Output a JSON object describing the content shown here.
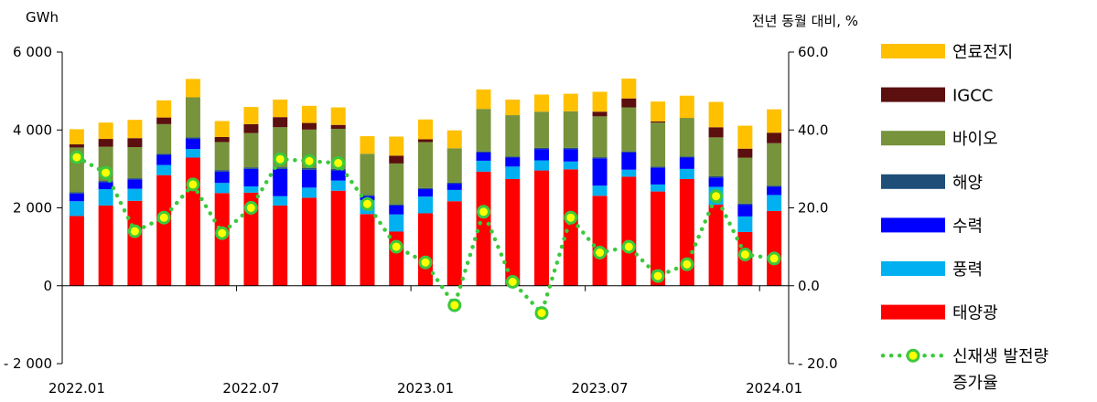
{
  "chart_data": {
    "type": "bar",
    "stacked": true,
    "left_axis": {
      "unit": "GWh",
      "ylim": [
        -2000,
        6000
      ],
      "ticks": [
        -2000,
        0,
        2000,
        4000,
        6000
      ],
      "tick_labels": [
        "- 2 000",
        "0",
        "2 000",
        "4 000",
        "6 000"
      ]
    },
    "right_axis": {
      "unit": "전년 동월 대비, %",
      "ylim": [
        -20,
        60
      ],
      "ticks": [
        -20,
        0,
        20,
        40,
        60
      ],
      "tick_labels": [
        "- 20.0",
        "0.0",
        "20.0",
        "40.0",
        "60.0"
      ]
    },
    "x_tick_labels": [
      {
        "index": 0,
        "label": "2022.01"
      },
      {
        "index": 6,
        "label": "2022.07"
      },
      {
        "index": 12,
        "label": "2023.01"
      },
      {
        "index": 18,
        "label": "2023.07"
      },
      {
        "index": 24,
        "label": "2024.01"
      }
    ],
    "categories": [
      "2022.01",
      "2022.02",
      "2022.03",
      "2022.04",
      "2022.05",
      "2022.06",
      "2022.07",
      "2022.08",
      "2022.09",
      "2022.10",
      "2022.11",
      "2022.12",
      "2023.01",
      "2023.02",
      "2023.03",
      "2023.04",
      "2023.05",
      "2023.06",
      "2023.07",
      "2023.08",
      "2023.09",
      "2023.10",
      "2023.11",
      "2023.12",
      "2024.01"
    ],
    "series": [
      {
        "name": "태양광",
        "color": "#ff0000",
        "values": [
          1790,
          2060,
          2180,
          2840,
          3290,
          2380,
          2390,
          2060,
          2260,
          2440,
          1840,
          1390,
          1860,
          2170,
          2930,
          2740,
          2960,
          2990,
          2310,
          2800,
          2420,
          2740,
          2080,
          1380,
          1920
        ]
      },
      {
        "name": "풍력",
        "color": "#00b0f0",
        "values": [
          380,
          420,
          310,
          260,
          220,
          260,
          160,
          240,
          260,
          260,
          360,
          440,
          430,
          290,
          280,
          320,
          260,
          200,
          260,
          180,
          180,
          260,
          460,
          400,
          410
        ]
      },
      {
        "name": "수력",
        "color": "#0000ff",
        "values": [
          200,
          180,
          240,
          260,
          260,
          290,
          450,
          700,
          460,
          260,
          100,
          230,
          190,
          160,
          210,
          230,
          290,
          320,
          700,
          440,
          430,
          290,
          240,
          300,
          210
        ]
      },
      {
        "name": "해양",
        "color": "#1f4e79",
        "values": [
          30,
          30,
          30,
          30,
          40,
          40,
          40,
          40,
          40,
          40,
          30,
          30,
          30,
          30,
          30,
          30,
          30,
          30,
          30,
          30,
          30,
          30,
          30,
          30,
          30
        ]
      },
      {
        "name": "바이오",
        "color": "#77933c",
        "values": [
          1150,
          880,
          800,
          760,
          1030,
          720,
          880,
          1030,
          990,
          1030,
          1060,
          1050,
          1180,
          880,
          1090,
          1060,
          930,
          940,
          1050,
          1130,
          1130,
          990,
          1000,
          1180,
          1090
        ]
      },
      {
        "name": "IGCC",
        "color": "#5b0f0f",
        "values": [
          80,
          200,
          230,
          170,
          0,
          130,
          230,
          260,
          170,
          100,
          0,
          200,
          70,
          0,
          0,
          0,
          0,
          0,
          120,
          230,
          30,
          0,
          260,
          230,
          270
        ]
      },
      {
        "name": "연료전지",
        "color": "#ffc000",
        "values": [
          390,
          420,
          470,
          440,
          470,
          410,
          440,
          450,
          440,
          450,
          450,
          490,
          510,
          460,
          500,
          400,
          440,
          450,
          510,
          510,
          510,
          570,
          650,
          590,
          600
        ]
      }
    ],
    "line": {
      "name": "신재생 발전량 증가율",
      "axis": "right",
      "color": "#3cc93c",
      "marker_fill": "#ffff00",
      "values": [
        33.0,
        29.0,
        14.0,
        17.5,
        26.0,
        13.5,
        20.0,
        32.5,
        32.0,
        31.5,
        21.0,
        10.0,
        6.0,
        -5.0,
        19.0,
        1.0,
        -7.0,
        17.5,
        8.5,
        10.0,
        2.5,
        5.5,
        23.0,
        8.0,
        7.0
      ]
    },
    "legend_placement": "right",
    "legend": [
      {
        "label": "연료전지",
        "color": "#ffc000",
        "kind": "bar"
      },
      {
        "label": "IGCC",
        "color": "#5b0f0f",
        "kind": "bar"
      },
      {
        "label": "바이오",
        "color": "#77933c",
        "kind": "bar"
      },
      {
        "label": "해양",
        "color": "#1f4e79",
        "kind": "bar"
      },
      {
        "label": "수력",
        "color": "#0000ff",
        "kind": "bar"
      },
      {
        "label": "풍력",
        "color": "#00b0f0",
        "kind": "bar"
      },
      {
        "label": "태양광",
        "color": "#ff0000",
        "kind": "bar"
      },
      {
        "label": "신재생 발전량",
        "label2": "증가율",
        "color": "#3cc93c",
        "kind": "line"
      }
    ]
  }
}
